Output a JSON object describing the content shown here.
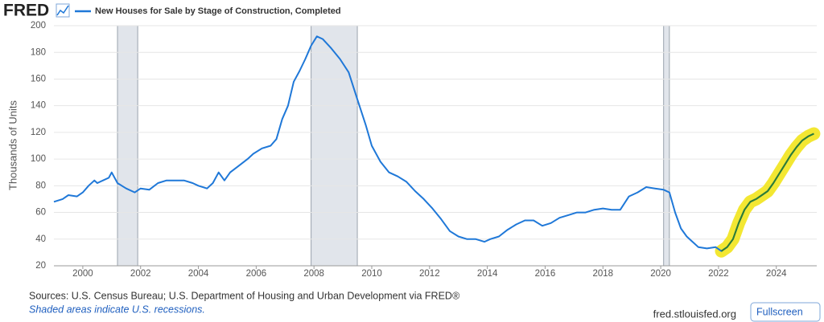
{
  "chart_data": {
    "type": "line",
    "brand": "FRED",
    "y_label": "Thousands of Units",
    "sources": "Sources: U.S. Census Bureau; U.S. Department of Housing and Urban Development via FRED®",
    "note": "Shaded areas indicate U.S. recessions.",
    "site": "fred.stlouisfed.org",
    "button": "Fullscreen",
    "xlim": [
      1999,
      2025.4
    ],
    "xticks": [
      2000,
      2002,
      2004,
      2006,
      2008,
      2010,
      2012,
      2014,
      2016,
      2018,
      2020,
      2022,
      2024
    ],
    "ylim": [
      20,
      200
    ],
    "yticks": [
      20,
      40,
      60,
      80,
      100,
      120,
      140,
      160,
      180,
      200
    ],
    "grid": true,
    "recessions": [
      [
        2001.2,
        2001.9
      ],
      [
        2007.9,
        2009.5
      ],
      [
        2020.1,
        2020.3
      ]
    ],
    "recession_color": "#e1e5eb",
    "highlight": {
      "color": "#f2e41c",
      "line_color": "#2e7d32",
      "x_start": 2022.0
    },
    "x": [
      1999.0,
      1999.3,
      1999.5,
      1999.8,
      2000.0,
      2000.2,
      2000.4,
      2000.5,
      2000.7,
      2000.9,
      2001.0,
      2001.2,
      2001.5,
      2001.8,
      2002.0,
      2002.3,
      2002.6,
      2002.9,
      2003.2,
      2003.5,
      2003.8,
      2004.0,
      2004.3,
      2004.5,
      2004.7,
      2004.9,
      2005.1,
      2005.4,
      2005.7,
      2005.9,
      2006.2,
      2006.5,
      2006.7,
      2006.9,
      2007.1,
      2007.3,
      2007.5,
      2007.7,
      2007.9,
      2008.1,
      2008.3,
      2008.6,
      2008.9,
      2009.2,
      2009.5,
      2009.8,
      2010.0,
      2010.3,
      2010.6,
      2010.9,
      2011.2,
      2011.5,
      2011.8,
      2012.1,
      2012.4,
      2012.7,
      2013.0,
      2013.3,
      2013.6,
      2013.9,
      2014.1,
      2014.4,
      2014.7,
      2015.0,
      2015.3,
      2015.6,
      2015.9,
      2016.2,
      2016.5,
      2016.8,
      2017.1,
      2017.4,
      2017.7,
      2018.0,
      2018.3,
      2018.6,
      2018.9,
      2019.2,
      2019.5,
      2019.8,
      2020.1,
      2020.3,
      2020.5,
      2020.7,
      2020.9,
      2021.1,
      2021.3,
      2021.6,
      2021.9,
      2022.1,
      2022.3,
      2022.5,
      2022.7,
      2022.9,
      2023.1,
      2023.3,
      2023.5,
      2023.7,
      2023.9,
      2024.1,
      2024.3,
      2024.5,
      2024.7,
      2024.9,
      2025.1,
      2025.3
    ],
    "series": [
      {
        "name": "New Houses for Sale by Stage of Construction, Completed",
        "color": "#1f78d8",
        "values": [
          68,
          70,
          73,
          72,
          75,
          80,
          84,
          82,
          84,
          86,
          90,
          82,
          78,
          75,
          78,
          77,
          82,
          84,
          84,
          84,
          82,
          80,
          78,
          82,
          90,
          84,
          90,
          95,
          100,
          104,
          108,
          110,
          115,
          130,
          140,
          158,
          166,
          175,
          185,
          192,
          190,
          183,
          175,
          165,
          145,
          125,
          110,
          98,
          90,
          87,
          83,
          76,
          70,
          63,
          55,
          46,
          42,
          40,
          40,
          38,
          40,
          42,
          47,
          51,
          54,
          54,
          50,
          52,
          56,
          58,
          60,
          60,
          62,
          63,
          62,
          62,
          72,
          75,
          79,
          78,
          77,
          75,
          60,
          48,
          42,
          38,
          34,
          33,
          34,
          31,
          34,
          40,
          52,
          62,
          68,
          70,
          73,
          76,
          82,
          89,
          96,
          103,
          109,
          114,
          117,
          119
        ]
      }
    ]
  }
}
